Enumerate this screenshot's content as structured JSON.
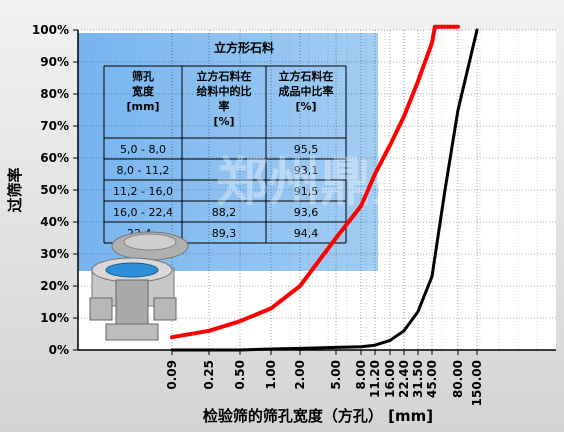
{
  "chart_data": {
    "type": "line",
    "xlabel": "检验筛的筛孔宽度（方孔） [mm]",
    "ylabel": "过筛率",
    "x_ticks": [
      "0.09",
      "0.25",
      "0.50",
      "1.00",
      "2.00",
      "5.00",
      "8.00",
      "11.20",
      "16.00",
      "22.40",
      "31.50",
      "45.00",
      "80.00",
      "150.00"
    ],
    "y_ticks": [
      "0%",
      "10%",
      "20%",
      "30%",
      "40%",
      "50%",
      "60%",
      "70%",
      "80%",
      "90%",
      "100%"
    ],
    "ylim": [
      0,
      100
    ],
    "grid": true,
    "series": [
      {
        "color": "#ff0000",
        "points": [
          [
            0.09,
            4
          ],
          [
            0.25,
            6
          ],
          [
            0.5,
            9
          ],
          [
            1.0,
            13
          ],
          [
            2.0,
            20
          ],
          [
            5.0,
            35
          ],
          [
            8.0,
            45
          ],
          [
            11.2,
            55
          ],
          [
            16.0,
            64
          ],
          [
            22.4,
            73
          ],
          [
            31.5,
            84
          ],
          [
            45.0,
            96
          ],
          [
            48,
            101
          ],
          [
            55,
            101
          ],
          [
            80,
            101
          ]
        ]
      },
      {
        "color": "#000000",
        "points": [
          [
            0.09,
            0
          ],
          [
            0.25,
            0
          ],
          [
            0.5,
            0
          ],
          [
            1.0,
            0.3
          ],
          [
            2.0,
            0.5
          ],
          [
            5.0,
            0.8
          ],
          [
            8.0,
            1
          ],
          [
            11.2,
            1.5
          ],
          [
            16.0,
            3
          ],
          [
            22.4,
            6
          ],
          [
            31.5,
            12
          ],
          [
            45.0,
            23
          ],
          [
            60,
            50
          ],
          [
            80,
            75
          ],
          [
            150,
            100
          ]
        ]
      }
    ]
  },
  "table": {
    "title": "立方形石料",
    "headers": [
      "筛孔\n宽度\n[mm]",
      "立方石料在\n给料中的比\n率\n[%]",
      "立方石料在\n成品中比率\n[%]"
    ],
    "rows": [
      [
        "5,0 -   8,0",
        "",
        "95,5"
      ],
      [
        "8,0 - 11,2",
        "",
        "93,1"
      ],
      [
        "11,2 - 16,0",
        "",
        "91,5"
      ],
      [
        "16,0 - 22,4",
        "88,2",
        "93,6"
      ],
      [
        "22,4 - ",
        "89,3",
        "94,4"
      ]
    ]
  },
  "watermark": "郑州鼎盛"
}
